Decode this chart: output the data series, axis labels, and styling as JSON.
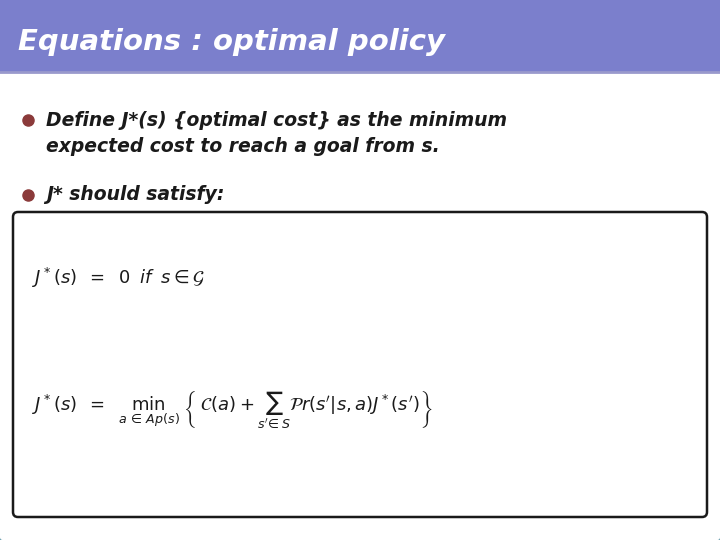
{
  "title": "Equations : optimal policy",
  "title_bg_color": "#7B7FCC",
  "title_text_color": "#FFFFFF",
  "slide_bg_color": "#FFFFFF",
  "border_color": "#6B9EAF",
  "bullet_color": "#8B3A3A",
  "bullet1_line1": "Define J*(s) {optimal cost} as the minimum",
  "bullet1_line2": "expected cost to reach a goal from s.",
  "bullet2": "J* should satisfy:",
  "text_color": "#1a1a1a",
  "eq_box_color": "#FFFFFF",
  "eq_box_border": "#1a1a1a",
  "title_bar_height": 72,
  "fig_width": 7.2,
  "fig_height": 5.4,
  "dpi": 100
}
